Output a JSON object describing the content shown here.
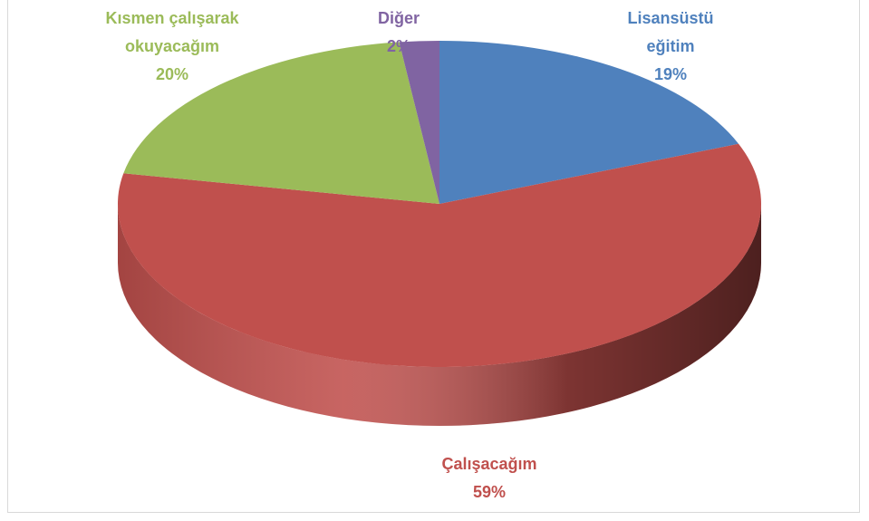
{
  "chart_data": {
    "type": "pie",
    "categories": [
      "Lisansüstü eğitim",
      "Çalışacağım",
      "Kısmen çalışarak okuyacağım",
      "Diğer"
    ],
    "values": [
      19,
      59,
      20,
      2
    ],
    "value_labels": [
      "19%",
      "59%",
      "20%",
      "2%"
    ],
    "colors": [
      "#4f81bd",
      "#c0504d",
      "#9bbb59",
      "#8064a2"
    ]
  }
}
